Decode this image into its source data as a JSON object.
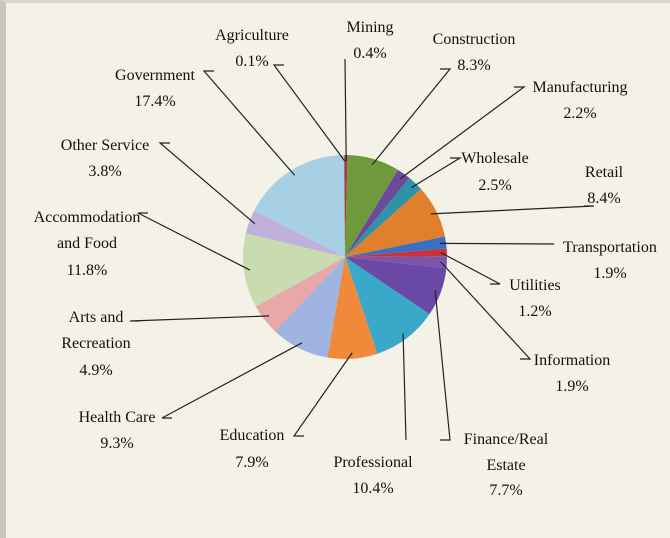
{
  "chart_data": {
    "type": "pie",
    "categories": [
      "Mining",
      "Construction",
      "Manufacturing",
      "Wholesale",
      "Retail",
      "Transportation",
      "Utilities",
      "Information",
      "Finance/Real Estate",
      "Professional",
      "Education",
      "Health Care",
      "Arts and Recreation",
      "Accommodation and Food",
      "Other Service",
      "Government",
      "Agriculture"
    ],
    "values": [
      0.4,
      8.3,
      2.2,
      2.5,
      8.4,
      1.9,
      1.2,
      1.9,
      7.7,
      10.4,
      7.9,
      9.3,
      4.9,
      11.8,
      3.8,
      17.4,
      0.1
    ],
    "value_labels": [
      "0.4%",
      "8.3%",
      "2.2%",
      "2.5%",
      "8.4%",
      "1.9%",
      "1.2%",
      "1.9%",
      "7.7%",
      "10.4%",
      "7.9%",
      "9.3%",
      "4.9%",
      "11.8%",
      "3.8%",
      "17.4%",
      "0.1%"
    ],
    "colors": [
      "#b8343c",
      "#6f9a3c",
      "#6c4a9a",
      "#2f93a8",
      "#e0802c",
      "#3a6fc6",
      "#c8333a",
      "#7a55a8",
      "#6a48a6",
      "#3aa8c8",
      "#f08a3a",
      "#9fb4e0",
      "#e8a8a8",
      "#c8dcb0",
      "#c0b0dc",
      "#a8d0e4",
      "#8c2a2a"
    ]
  }
}
